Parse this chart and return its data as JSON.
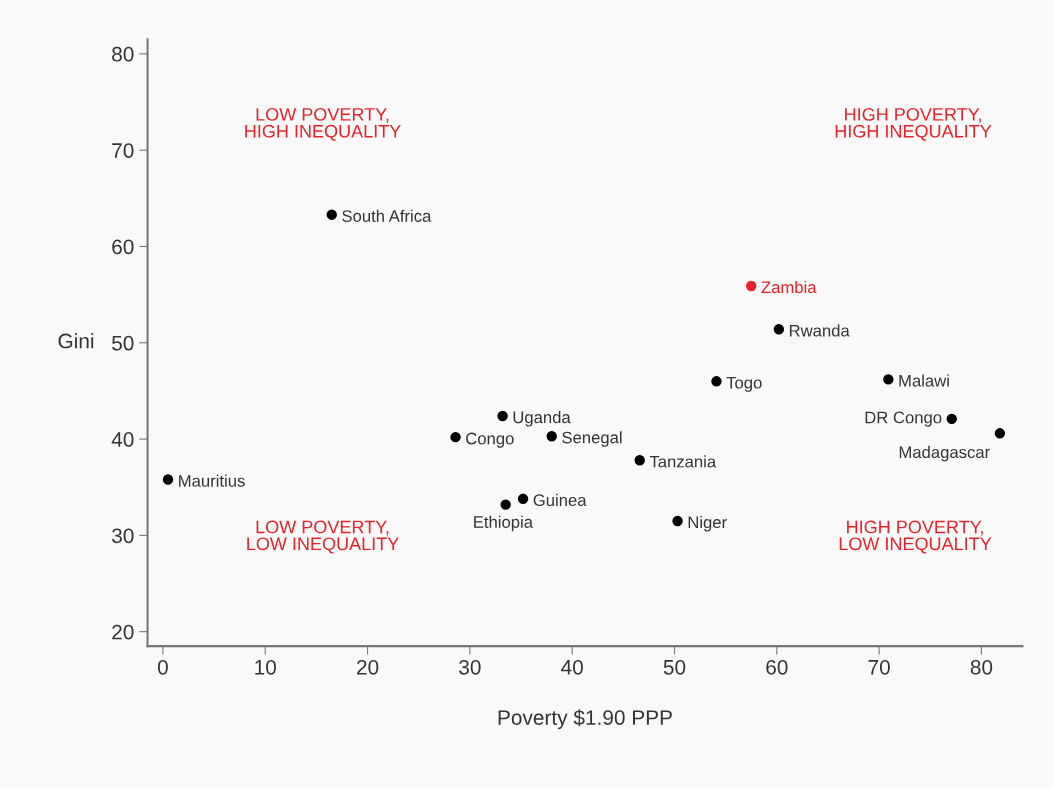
{
  "chart_data": {
    "type": "scatter",
    "xlabel": "Poverty $1.90 PPP",
    "ylabel": "Gini",
    "xlim": [
      -1.5,
      84
    ],
    "ylim": [
      18.5,
      81.5
    ],
    "xticks": [
      0,
      10,
      20,
      30,
      40,
      50,
      60,
      70,
      80
    ],
    "yticks": [
      20,
      30,
      40,
      50,
      60,
      70,
      80
    ],
    "grid": false,
    "legend": false,
    "marker": "circle",
    "series": [
      {
        "name": "Mauritius",
        "color": "#000000",
        "x": [
          0.5
        ],
        "values": [
          35.8
        ]
      },
      {
        "name": "South Africa",
        "color": "#000000",
        "x": [
          16.5
        ],
        "values": [
          63.3
        ]
      },
      {
        "name": "Congo",
        "color": "#000000",
        "x": [
          28.6
        ],
        "values": [
          40.2
        ]
      },
      {
        "name": "Uganda",
        "color": "#000000",
        "x": [
          33.2
        ],
        "values": [
          42.4
        ]
      },
      {
        "name": "Ethiopia",
        "color": "#000000",
        "x": [
          33.5
        ],
        "values": [
          33.2
        ]
      },
      {
        "name": "Guinea",
        "color": "#000000",
        "x": [
          35.2
        ],
        "values": [
          33.8
        ]
      },
      {
        "name": "Senegal",
        "color": "#000000",
        "x": [
          38.0
        ],
        "values": [
          40.3
        ]
      },
      {
        "name": "Tanzania",
        "color": "#000000",
        "x": [
          46.6
        ],
        "values": [
          37.8
        ]
      },
      {
        "name": "Niger",
        "color": "#000000",
        "x": [
          50.3
        ],
        "values": [
          31.5
        ]
      },
      {
        "name": "Togo",
        "color": "#000000",
        "x": [
          54.1
        ],
        "values": [
          46.0
        ]
      },
      {
        "name": "Zambia",
        "color": "#e8202a",
        "x": [
          57.5
        ],
        "values": [
          55.9
        ]
      },
      {
        "name": "Rwanda",
        "color": "#000000",
        "x": [
          60.2
        ],
        "values": [
          51.4
        ]
      },
      {
        "name": "Malawi",
        "color": "#000000",
        "x": [
          70.9
        ],
        "values": [
          46.2
        ]
      },
      {
        "name": "DR Congo",
        "color": "#000000",
        "x": [
          77.1
        ],
        "values": [
          42.1
        ]
      },
      {
        "name": "Madagascar",
        "color": "#000000",
        "x": [
          81.8
        ],
        "values": [
          40.6
        ]
      }
    ],
    "annotations": [
      "LOW POVERTY,\nHIGH INEQUALITY",
      "HIGH POVERTY,\nHIGH INEQUALITY",
      "LOW POVERTY,\nLOW INEQUALITY",
      "HIGH POVERTY,\nLOW INEQUALITY"
    ]
  }
}
